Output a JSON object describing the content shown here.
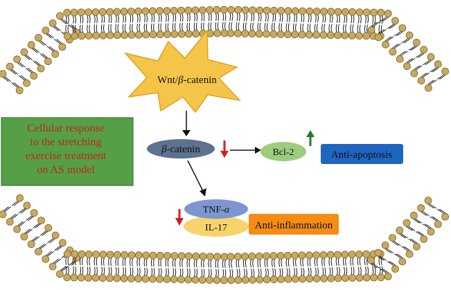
{
  "diagram": {
    "colors": {
      "lipid_head": "#c9a95d",
      "lipid_head_stroke": "#7a6330",
      "tail": "#1a1a1a",
      "star_fill": "#f5c54a",
      "star_stroke": "#e0a020",
      "catenin_fill": "#5d7190",
      "bcl2_fill": "#9ccd7d",
      "antiapoptosis_fill": "#1f66c1",
      "tnf_fill": "#7e96d0",
      "il17_fill": "#f7d36c",
      "antiinflammation_fill": "#f58c14",
      "response_box_fill": "#55a047",
      "response_text": "#c0241c",
      "arrow_down_red": "#d21f1f",
      "arrow_up_green": "#207a2a"
    },
    "wnt_label": {
      "prefix": "Wnt/",
      "greek": "β",
      "suffix": "-catenin"
    },
    "catenin_label": {
      "greek": "β",
      "suffix": "-catenin"
    },
    "bcl2_label": "Bcl-2",
    "antiapoptosis_label": "Anti-apoptosis",
    "tnf_label": {
      "prefix": "TNF-",
      "greek": "α"
    },
    "il17_label": "IL-17",
    "antiinflammation_label": "Anti-inflammation",
    "response_box_lines": [
      "Cellular response",
      "to the stretching",
      "exercise treatment",
      "on AS model"
    ]
  }
}
